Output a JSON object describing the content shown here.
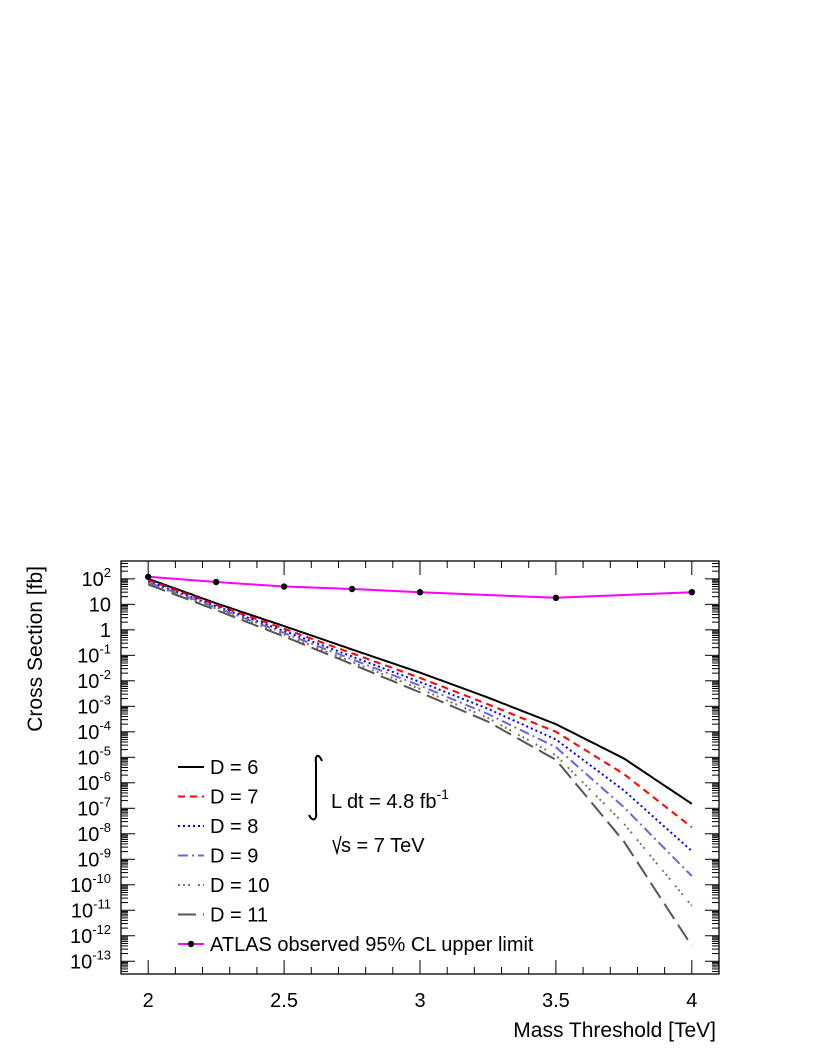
{
  "chart_data": {
    "type": "line",
    "xlabel": "Mass Threshold [TeV]",
    "ylabel": "Cross Section [fb]",
    "xlim": [
      1.9,
      4.1
    ],
    "ylim_log10": [
      -13.5,
      2.7
    ],
    "y_scale": "log",
    "x_ticks": [
      {
        "value": 2,
        "label": "2"
      },
      {
        "value": 2.5,
        "label": "2.5"
      },
      {
        "value": 3,
        "label": "3"
      },
      {
        "value": 3.5,
        "label": "3.5"
      },
      {
        "value": 4,
        "label": "4"
      }
    ],
    "y_ticks": [
      {
        "exp": 2,
        "base": "10",
        "sup": "2"
      },
      {
        "exp": 1,
        "base": "10",
        "sup": ""
      },
      {
        "exp": 0,
        "base": "1",
        "sup": ""
      },
      {
        "exp": -1,
        "base": "10",
        "sup": "-1"
      },
      {
        "exp": -2,
        "base": "10",
        "sup": "-2"
      },
      {
        "exp": -3,
        "base": "10",
        "sup": "-3"
      },
      {
        "exp": -4,
        "base": "10",
        "sup": "-4"
      },
      {
        "exp": -5,
        "base": "10",
        "sup": "-5"
      },
      {
        "exp": -6,
        "base": "10",
        "sup": "-6"
      },
      {
        "exp": -7,
        "base": "10",
        "sup": "-7"
      },
      {
        "exp": -8,
        "base": "10",
        "sup": "-8"
      },
      {
        "exp": -9,
        "base": "10",
        "sup": "-9"
      },
      {
        "exp": -10,
        "base": "10",
        "sup": "-10"
      },
      {
        "exp": -11,
        "base": "10",
        "sup": "-11"
      },
      {
        "exp": -12,
        "base": "10",
        "sup": "-12"
      },
      {
        "exp": -13,
        "base": "10",
        "sup": "-13"
      }
    ],
    "x": [
      2.0,
      2.25,
      2.5,
      2.75,
      3.0,
      3.25,
      3.5,
      3.75,
      4.0
    ],
    "series": [
      {
        "name": "D = 6",
        "color": "#000000",
        "dash": "",
        "markers": false,
        "values": [
          100,
          11,
          1.4,
          0.17,
          0.021,
          0.0022,
          0.0002,
          9e-06,
          1.5e-07
        ]
      },
      {
        "name": "D = 7",
        "color": "#ff0000",
        "dash": "7,5",
        "markers": false,
        "values": [
          90,
          9.5,
          1.1,
          0.12,
          0.013,
          0.0012,
          0.0001,
          2.2e-06,
          1.8e-08
        ]
      },
      {
        "name": "D = 8",
        "color": "#0000ff",
        "dash": "2,3",
        "markers": false,
        "values": [
          80,
          8.5,
          0.9,
          0.09,
          0.009,
          0.0008,
          5e-05,
          5e-07,
          2.1e-09
        ]
      },
      {
        "name": "D = 9",
        "color": "#6666dd",
        "dash": "10,4,2,4",
        "markers": false,
        "values": [
          72,
          7.5,
          0.75,
          0.07,
          0.0065,
          0.0005,
          2.5e-05,
          1.1e-07,
          2.2e-10
        ]
      },
      {
        "name": "D = 10",
        "color": "#8b6f5a",
        "dash": "2,3,2,3,2,8",
        "markers": false,
        "values": [
          68,
          6.8,
          0.65,
          0.055,
          0.0048,
          0.00035,
          1.2e-05,
          2.5e-08,
          1.5e-11
        ]
      },
      {
        "name": "D = 11",
        "color": "#555555",
        "dash": "18,7",
        "markers": false,
        "values": [
          60,
          6,
          0.55,
          0.045,
          0.0035,
          0.00025,
          8e-06,
          5e-09,
          4e-13
        ]
      },
      {
        "name": "ATLAS observed 95% CL upper limit",
        "color": "#ff00ff",
        "dash": "",
        "markers": true,
        "x": [
          2.0,
          2.25,
          2.5,
          2.75,
          3.0,
          3.5,
          4.0
        ],
        "values": [
          120,
          75,
          50,
          40,
          30,
          18,
          30
        ]
      }
    ],
    "annotations": {
      "lumi": "L dt = 4.8 fb",
      "lumi_sup": "-1",
      "energy": "s = 7 TeV"
    },
    "legend_position": "bottom-left"
  }
}
